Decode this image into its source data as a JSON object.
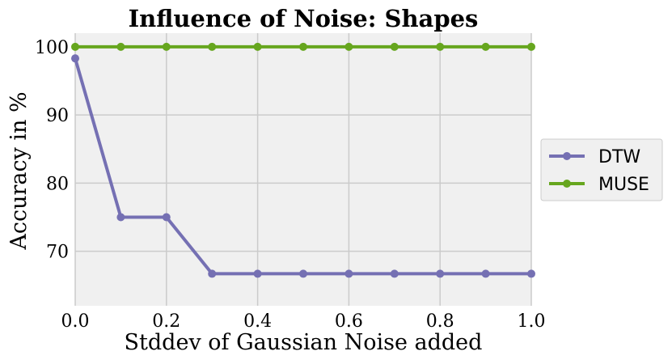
{
  "chart_data": {
    "type": "line",
    "title": "Influence of Noise: Shapes",
    "xlabel": "Stddev of Gaussian Noise added",
    "ylabel": "Accuracy in %",
    "x": [
      0.0,
      0.1,
      0.2,
      0.3,
      0.4,
      0.5,
      0.6,
      0.7,
      0.8,
      0.9,
      1.0
    ],
    "xlim": [
      0.0,
      1.0
    ],
    "ylim": [
      62,
      102
    ],
    "xticks": [
      "0.0",
      "0.2",
      "0.4",
      "0.6",
      "0.8",
      "1.0"
    ],
    "yticks": [
      "70",
      "80",
      "90",
      "100"
    ],
    "grid": true,
    "legend_position": "right, outside plot",
    "series": [
      {
        "name": "DTW",
        "color": "#7570b3",
        "values": [
          98.3,
          75.0,
          75.0,
          66.7,
          66.7,
          66.7,
          66.7,
          66.7,
          66.7,
          66.7,
          66.7
        ]
      },
      {
        "name": "MUSE",
        "color": "#66a61e",
        "values": [
          100,
          100,
          100,
          100,
          100,
          100,
          100,
          100,
          100,
          100,
          100
        ]
      }
    ]
  },
  "colors": {
    "plot_background": "#f0f0f0",
    "grid": "#cbcbcb",
    "legend_background": "#f0f0f0",
    "legend_border": "#cccccc"
  }
}
